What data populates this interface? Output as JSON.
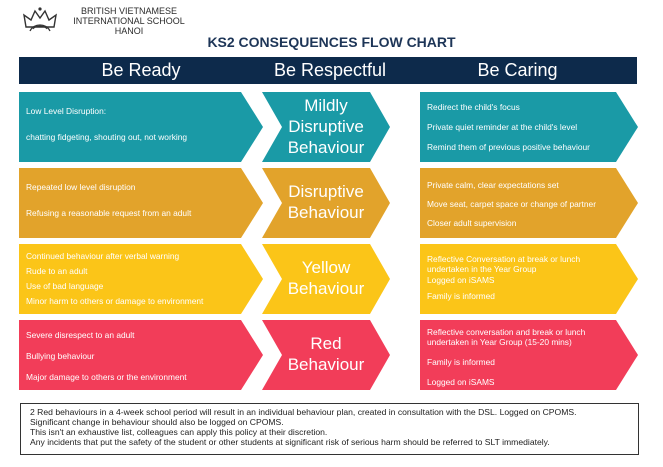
{
  "header": {
    "school_line1": "BRITISH VIETNAMESE",
    "school_line2": "INTERNATIONAL SCHOOL",
    "school_line3": "HANOI",
    "logo_icon": "crown-crest-icon"
  },
  "title": "KS2 CONSEQUENCES FLOW CHART",
  "columns": [
    "Be Ready",
    "Be Respectful",
    "Be Caring"
  ],
  "colors": {
    "header_bar": "#0d2a4b",
    "teal": "#1a9aa6",
    "amber": "#e2a32b",
    "yellow": "#fbc518",
    "red": "#f23d59"
  },
  "rows": [
    {
      "left": [
        "Low Level Disruption:",
        "chatting fidgeting, shouting out, not working"
      ],
      "middle": [
        "Mildly",
        "Disruptive",
        "Behaviour"
      ],
      "right": [
        "Redirect the child's focus",
        "Private quiet reminder at the child's level",
        "Remind them of previous positive behaviour"
      ]
    },
    {
      "left": [
        "Repeated low level disruption",
        "Refusing a reasonable request from an adult"
      ],
      "middle": [
        "Disruptive",
        "Behaviour"
      ],
      "right": [
        "Private calm, clear expectations set",
        "Move seat, carpet space or change of partner",
        "Closer adult supervision"
      ]
    },
    {
      "left": [
        "Continued behaviour after verbal warning",
        "Rude to an adult",
        "Use of bad language",
        "Minor harm to others or damage to environment"
      ],
      "middle": [
        "Yellow",
        "Behaviour"
      ],
      "right": [
        "Reflective Conversation at break or lunch undertaken in the Year Group",
        "Logged on iSAMS",
        "Family is informed"
      ]
    },
    {
      "left": [
        "Severe disrespect to an adult",
        "Bullying behaviour",
        "Major damage to others or the environment"
      ],
      "middle": [
        "Red",
        "Behaviour"
      ],
      "right": [
        "Reflective conversation and break or lunch undertaken in Year Group (15-20 mins)",
        "Family is informed",
        "Logged on iSAMS"
      ]
    }
  ],
  "footer": [
    "2 Red behaviours in a 4-week school period will result in an individual behaviour plan, created in consultation with the DSL. Logged on CPOMS.",
    "Significant change in behaviour should also be logged on CPOMS.",
    "This isn't an exhaustive list, colleagues can apply this policy at their discretion.",
    "Any incidents that put the safety of the student or other students at significant risk of serious harm should be referred to SLT immediately."
  ]
}
